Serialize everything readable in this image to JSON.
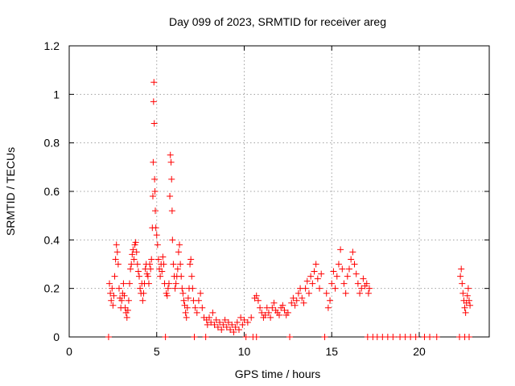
{
  "chart_data": {
    "type": "scatter",
    "title": "Day 099 of 2023, SRMTID for receiver areg",
    "xlabel": "GPS time / hours",
    "ylabel": "SRMTID / TECUs",
    "xlim": [
      0,
      24
    ],
    "ylim": [
      0,
      1.2
    ],
    "x_ticks": [
      0,
      5,
      10,
      15,
      20
    ],
    "x_tick_labels": [
      "0",
      "5",
      "10",
      "15",
      "20"
    ],
    "y_ticks": [
      0,
      0.2,
      0.4,
      0.6,
      0.8,
      1.0,
      1.2
    ],
    "y_tick_labels": [
      "0",
      "0.2",
      "0.4",
      "0.6",
      "0.8",
      "1",
      "1.2"
    ],
    "grid": true,
    "marker": "+",
    "series": [
      {
        "name": "SRMTID",
        "color": "#ff0000",
        "points": [
          [
            2.25,
            0
          ],
          [
            5.5,
            0
          ],
          [
            7.15,
            0
          ],
          [
            7.8,
            0
          ],
          [
            10.1,
            0
          ],
          [
            10.5,
            0
          ],
          [
            10.7,
            0
          ],
          [
            12.6,
            0
          ],
          [
            14.6,
            0
          ],
          [
            17.05,
            0
          ],
          [
            17.35,
            0
          ],
          [
            17.6,
            0
          ],
          [
            17.9,
            0
          ],
          [
            18.2,
            0
          ],
          [
            18.5,
            0
          ],
          [
            18.9,
            0
          ],
          [
            19.2,
            0
          ],
          [
            19.5,
            0
          ],
          [
            19.8,
            0
          ],
          [
            20.3,
            0
          ],
          [
            20.6,
            0
          ],
          [
            21.0,
            0
          ],
          [
            22.3,
            0
          ],
          [
            22.6,
            0
          ],
          [
            22.85,
            0
          ],
          [
            2.3,
            0.22
          ],
          [
            2.35,
            0.18
          ],
          [
            2.4,
            0.15
          ],
          [
            2.45,
            0.2
          ],
          [
            2.5,
            0.13
          ],
          [
            2.55,
            0.17
          ],
          [
            2.6,
            0.25
          ],
          [
            2.65,
            0.32
          ],
          [
            2.7,
            0.38
          ],
          [
            2.75,
            0.35
          ],
          [
            2.8,
            0.3
          ],
          [
            2.85,
            0.2
          ],
          [
            2.9,
            0.16
          ],
          [
            2.95,
            0.12
          ],
          [
            3.0,
            0.15
          ],
          [
            3.05,
            0.18
          ],
          [
            3.1,
            0.22
          ],
          [
            3.15,
            0.17
          ],
          [
            3.2,
            0.12
          ],
          [
            3.25,
            0.1
          ],
          [
            3.3,
            0.08
          ],
          [
            3.35,
            0.11
          ],
          [
            3.4,
            0.15
          ],
          [
            3.45,
            0.22
          ],
          [
            3.5,
            0.28
          ],
          [
            3.55,
            0.3
          ],
          [
            3.6,
            0.34
          ],
          [
            3.65,
            0.36
          ],
          [
            3.7,
            0.32
          ],
          [
            3.75,
            0.38
          ],
          [
            3.8,
            0.39
          ],
          [
            3.85,
            0.35
          ],
          [
            3.9,
            0.3
          ],
          [
            3.95,
            0.27
          ],
          [
            4.0,
            0.25
          ],
          [
            4.05,
            0.2
          ],
          [
            4.1,
            0.18
          ],
          [
            4.15,
            0.22
          ],
          [
            4.2,
            0.15
          ],
          [
            4.25,
            0.18
          ],
          [
            4.3,
            0.22
          ],
          [
            4.35,
            0.28
          ],
          [
            4.4,
            0.3
          ],
          [
            4.45,
            0.26
          ],
          [
            4.5,
            0.25
          ],
          [
            4.55,
            0.22
          ],
          [
            4.6,
            0.3
          ],
          [
            4.65,
            0.28
          ],
          [
            4.7,
            0.32
          ],
          [
            4.75,
            0.45
          ],
          [
            4.78,
            0.58
          ],
          [
            4.8,
            0.72
          ],
          [
            4.82,
            0.97
          ],
          [
            4.84,
            1.05
          ],
          [
            4.86,
            0.88
          ],
          [
            4.88,
            0.65
          ],
          [
            4.9,
            0.6
          ],
          [
            4.92,
            0.52
          ],
          [
            4.95,
            0.45
          ],
          [
            5.0,
            0.42
          ],
          [
            5.05,
            0.38
          ],
          [
            5.1,
            0.32
          ],
          [
            5.15,
            0.28
          ],
          [
            5.2,
            0.25
          ],
          [
            5.25,
            0.3
          ],
          [
            5.3,
            0.27
          ],
          [
            5.35,
            0.33
          ],
          [
            5.4,
            0.3
          ],
          [
            5.45,
            0.22
          ],
          [
            5.55,
            0.18
          ],
          [
            5.6,
            0.17
          ],
          [
            5.65,
            0.2
          ],
          [
            5.7,
            0.22
          ],
          [
            5.75,
            0.58
          ],
          [
            5.78,
            0.75
          ],
          [
            5.82,
            0.72
          ],
          [
            5.85,
            0.65
          ],
          [
            5.88,
            0.52
          ],
          [
            5.9,
            0.4
          ],
          [
            5.95,
            0.3
          ],
          [
            6.0,
            0.25
          ],
          [
            6.05,
            0.2
          ],
          [
            6.1,
            0.22
          ],
          [
            6.15,
            0.25
          ],
          [
            6.2,
            0.28
          ],
          [
            6.25,
            0.35
          ],
          [
            6.3,
            0.38
          ],
          [
            6.35,
            0.3
          ],
          [
            6.4,
            0.25
          ],
          [
            6.45,
            0.2
          ],
          [
            6.5,
            0.18
          ],
          [
            6.55,
            0.15
          ],
          [
            6.6,
            0.13
          ],
          [
            6.65,
            0.1
          ],
          [
            6.7,
            0.08
          ],
          [
            6.75,
            0.12
          ],
          [
            6.8,
            0.16
          ],
          [
            6.85,
            0.2
          ],
          [
            6.9,
            0.3
          ],
          [
            6.95,
            0.32
          ],
          [
            7.0,
            0.25
          ],
          [
            7.05,
            0.2
          ],
          [
            7.1,
            0.15
          ],
          [
            7.2,
            0.12
          ],
          [
            7.3,
            0.1
          ],
          [
            7.4,
            0.15
          ],
          [
            7.5,
            0.18
          ],
          [
            7.6,
            0.12
          ],
          [
            7.7,
            0.08
          ],
          [
            7.85,
            0.07
          ],
          [
            7.9,
            0.05
          ],
          [
            8.0,
            0.08
          ],
          [
            8.1,
            0.06
          ],
          [
            8.2,
            0.1
          ],
          [
            8.3,
            0.05
          ],
          [
            8.4,
            0.07
          ],
          [
            8.5,
            0.04
          ],
          [
            8.6,
            0.06
          ],
          [
            8.7,
            0.03
          ],
          [
            8.8,
            0.05
          ],
          [
            8.9,
            0.07
          ],
          [
            9.0,
            0.04
          ],
          [
            9.1,
            0.06
          ],
          [
            9.2,
            0.03
          ],
          [
            9.3,
            0.05
          ],
          [
            9.4,
            0.02
          ],
          [
            9.5,
            0.04
          ],
          [
            9.6,
            0.06
          ],
          [
            9.7,
            0.03
          ],
          [
            9.8,
            0.08
          ],
          [
            9.9,
            0.05
          ],
          [
            10.0,
            0.07
          ],
          [
            10.2,
            0.06
          ],
          [
            10.4,
            0.08
          ],
          [
            10.6,
            0.16
          ],
          [
            10.7,
            0.17
          ],
          [
            10.8,
            0.15
          ],
          [
            10.9,
            0.12
          ],
          [
            11.0,
            0.1
          ],
          [
            11.1,
            0.08
          ],
          [
            11.2,
            0.09
          ],
          [
            11.3,
            0.12
          ],
          [
            11.4,
            0.1
          ],
          [
            11.5,
            0.08
          ],
          [
            11.6,
            0.12
          ],
          [
            11.7,
            0.14
          ],
          [
            11.8,
            0.11
          ],
          [
            11.9,
            0.1
          ],
          [
            12.0,
            0.09
          ],
          [
            12.1,
            0.12
          ],
          [
            12.2,
            0.13
          ],
          [
            12.3,
            0.11
          ],
          [
            12.4,
            0.09
          ],
          [
            12.5,
            0.1
          ],
          [
            12.7,
            0.14
          ],
          [
            12.8,
            0.16
          ],
          [
            12.9,
            0.13
          ],
          [
            13.0,
            0.15
          ],
          [
            13.1,
            0.18
          ],
          [
            13.2,
            0.2
          ],
          [
            13.3,
            0.16
          ],
          [
            13.4,
            0.14
          ],
          [
            13.5,
            0.2
          ],
          [
            13.6,
            0.23
          ],
          [
            13.7,
            0.18
          ],
          [
            13.8,
            0.25
          ],
          [
            13.9,
            0.22
          ],
          [
            14.0,
            0.27
          ],
          [
            14.1,
            0.3
          ],
          [
            14.2,
            0.24
          ],
          [
            14.3,
            0.2
          ],
          [
            14.4,
            0.26
          ],
          [
            14.7,
            0.18
          ],
          [
            14.8,
            0.12
          ],
          [
            14.9,
            0.15
          ],
          [
            15.0,
            0.22
          ],
          [
            15.1,
            0.27
          ],
          [
            15.2,
            0.2
          ],
          [
            15.3,
            0.25
          ],
          [
            15.4,
            0.3
          ],
          [
            15.5,
            0.36
          ],
          [
            15.6,
            0.28
          ],
          [
            15.7,
            0.22
          ],
          [
            15.8,
            0.18
          ],
          [
            15.9,
            0.25
          ],
          [
            16.0,
            0.28
          ],
          [
            16.1,
            0.32
          ],
          [
            16.2,
            0.35
          ],
          [
            16.3,
            0.3
          ],
          [
            16.4,
            0.26
          ],
          [
            16.5,
            0.22
          ],
          [
            16.6,
            0.18
          ],
          [
            16.7,
            0.2
          ],
          [
            16.8,
            0.24
          ],
          [
            16.9,
            0.21
          ],
          [
            17.0,
            0.22
          ],
          [
            17.1,
            0.18
          ],
          [
            17.15,
            0.2
          ],
          [
            22.35,
            0.25
          ],
          [
            22.4,
            0.28
          ],
          [
            22.45,
            0.22
          ],
          [
            22.5,
            0.18
          ],
          [
            22.55,
            0.15
          ],
          [
            22.6,
            0.12
          ],
          [
            22.65,
            0.1
          ],
          [
            22.7,
            0.14
          ],
          [
            22.75,
            0.17
          ],
          [
            22.8,
            0.2
          ],
          [
            22.85,
            0.15
          ],
          [
            22.9,
            0.13
          ]
        ]
      }
    ]
  }
}
